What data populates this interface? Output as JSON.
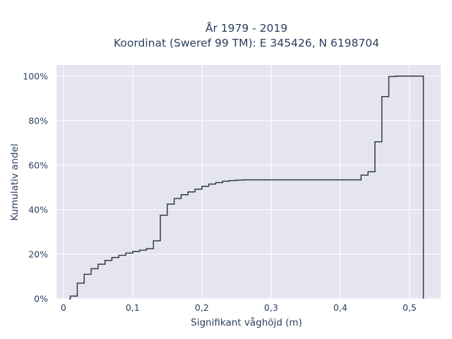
{
  "chart_data": {
    "type": "line",
    "line_shape": "step",
    "title_lines": [
      "År 1979 - 2019",
      "Koordinat (Sweref 99 TM): E 345426, N 6198704"
    ],
    "xlabel": "Signifikant våghöjd (m)",
    "ylabel": "Kumulativ andel",
    "xlim": [
      -0.01,
      0.545
    ],
    "ylim": [
      0,
      1.05
    ],
    "x_ticks": [
      0,
      0.1,
      0.2,
      0.3,
      0.4,
      0.5
    ],
    "x_tick_labels": [
      "0",
      "0,1",
      "0,2",
      "0,3",
      "0,4",
      "0,5"
    ],
    "y_ticks": [
      0,
      0.2,
      0.4,
      0.6,
      0.8,
      1.0
    ],
    "y_tick_labels": [
      "0%",
      "20%",
      "40%",
      "60%",
      "80%",
      "100%"
    ],
    "grid": true,
    "colors": {
      "background": "#e5e5f0",
      "line": "#333a45",
      "text": "#2a3f5f",
      "grid": "#ffffff"
    },
    "x": [
      0.008,
      0.01,
      0.02,
      0.03,
      0.04,
      0.05,
      0.06,
      0.07,
      0.08,
      0.09,
      0.1,
      0.11,
      0.12,
      0.13,
      0.14,
      0.15,
      0.16,
      0.17,
      0.18,
      0.19,
      0.2,
      0.21,
      0.22,
      0.23,
      0.24,
      0.25,
      0.26,
      0.43,
      0.44,
      0.45,
      0.46,
      0.47,
      0.48,
      0.52,
      0.52
    ],
    "y": [
      0.0,
      0.012,
      0.07,
      0.11,
      0.135,
      0.155,
      0.172,
      0.185,
      0.195,
      0.205,
      0.212,
      0.218,
      0.225,
      0.26,
      0.375,
      0.425,
      0.45,
      0.467,
      0.48,
      0.492,
      0.505,
      0.515,
      0.522,
      0.528,
      0.531,
      0.533,
      0.534,
      0.555,
      0.57,
      0.705,
      0.908,
      0.998,
      1.0,
      1.0,
      0.0
    ]
  }
}
